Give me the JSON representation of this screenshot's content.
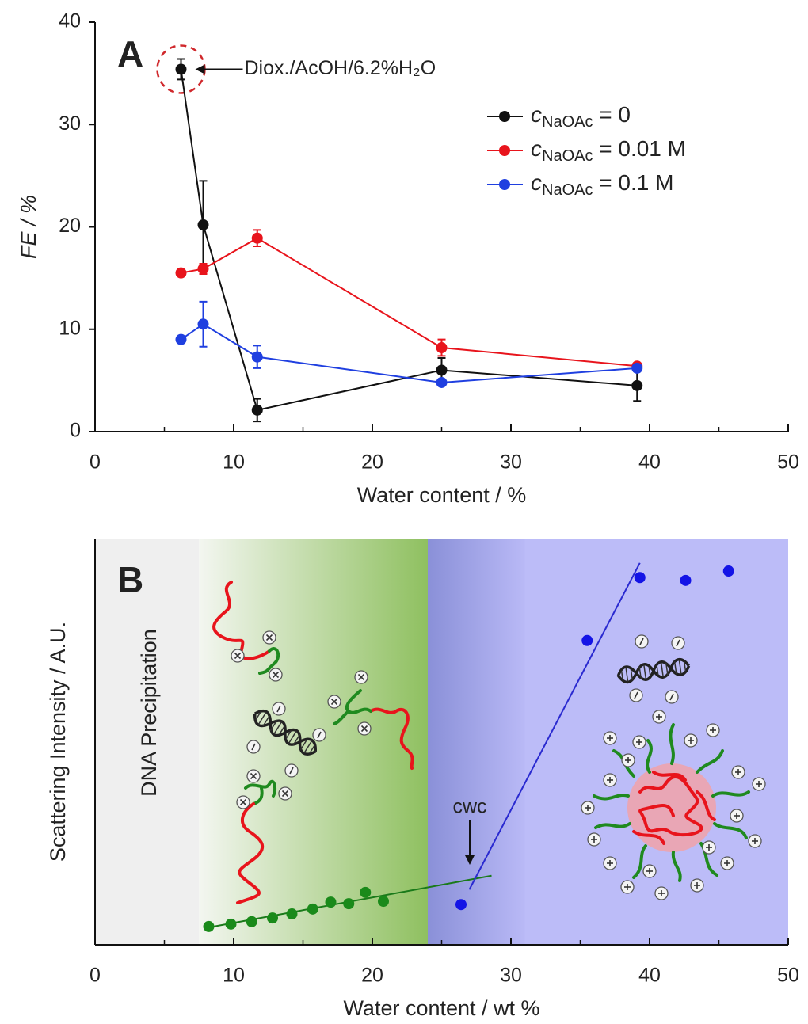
{
  "chart_data": [
    {
      "type": "line",
      "panel_label": "A",
      "annotation": "Diox./AcOH/6.2%H₂O",
      "xlabel": "Water content / %",
      "ylabel": "FE / %",
      "x": [
        6.2,
        7.8,
        11.7,
        25,
        39.1
      ],
      "series": [
        {
          "name": "cNaOAc = 0",
          "color": "#111111",
          "values": [
            35.4,
            20.2,
            2.1,
            6.0,
            4.5
          ],
          "errors": [
            1.0,
            4.3,
            1.1,
            1.2,
            1.5
          ]
        },
        {
          "name": "cNaOAc = 0.01 M",
          "color": "#e8141c",
          "values": [
            15.5,
            15.9,
            18.9,
            8.2,
            6.4
          ],
          "errors": [
            0.3,
            0.5,
            0.8,
            0.8,
            0.2
          ]
        },
        {
          "name": "cNaOAc = 0.1 M",
          "color": "#1f3fe0",
          "values": [
            9.0,
            10.5,
            7.3,
            4.8,
            6.2
          ],
          "errors": [
            0.3,
            2.2,
            1.1,
            0.3,
            0.3
          ]
        }
      ],
      "xlim": [
        0,
        50
      ],
      "xticks": [
        0,
        10,
        20,
        30,
        40,
        50
      ],
      "xminorticks": [
        5,
        15,
        25,
        35,
        45
      ],
      "ylim": [
        0,
        40
      ],
      "yticks": [
        0,
        10,
        20,
        30,
        40
      ],
      "legend": "upper right"
    },
    {
      "type": "scatter",
      "panel_label": "B",
      "annotations": [
        "DNA Precipitation",
        "cwc"
      ],
      "xlabel": "Water content / wt %",
      "ylabel": "Scattering Intensity / A.U.",
      "series": [
        {
          "color": "#1a8a1a",
          "x": [
            8.2,
            9.8,
            11.3,
            12.8,
            14.2,
            15.7,
            17.0,
            18.3,
            19.5,
            20.8
          ],
          "values": [
            4.5,
            5.1,
            5.7,
            6.6,
            7.6,
            8.8,
            10.5,
            10.1,
            12.9,
            10.7
          ]
        },
        {
          "color": "#1414e6",
          "x": [
            26.4,
            35.5,
            39.3,
            42.6,
            45.7
          ],
          "values": [
            9.9,
            74.9,
            90.4,
            89.7,
            92.0
          ]
        }
      ],
      "fits": [
        {
          "color": "#1a7a1a",
          "x": [
            7.9,
            28.6
          ],
          "values": [
            4.1,
            17.0
          ]
        },
        {
          "color": "#2a2ad0",
          "x": [
            27.0,
            39.3
          ],
          "values": [
            13.6,
            94.0
          ]
        }
      ],
      "regions": [
        {
          "xlim": [
            0,
            7.5
          ],
          "colors": [
            "#efefef",
            "#efefef"
          ]
        },
        {
          "xlim": [
            7.5,
            24
          ],
          "colors": [
            "#f3f6f0",
            "#8fc060"
          ]
        },
        {
          "xlim": [
            24,
            31
          ],
          "colors": [
            "#8a90d8",
            "#b9b9f6"
          ]
        },
        {
          "xlim": [
            31,
            50
          ],
          "colors": [
            "#bcbcf8",
            "#bcbcf8"
          ]
        }
      ],
      "xlim": [
        0,
        50
      ],
      "xticks": [
        0,
        10,
        20,
        30,
        40,
        50
      ],
      "xminorticks": [
        5,
        15,
        25,
        35,
        45
      ],
      "ylim": [
        0,
        100
      ]
    }
  ]
}
